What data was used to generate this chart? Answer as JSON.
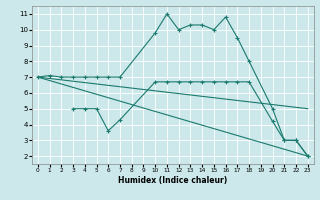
{
  "xlabel": "Humidex (Indice chaleur)",
  "bg_color": "#cce8ea",
  "grid_color": "#ffffff",
  "line_color": "#1a7a6e",
  "xlim": [
    -0.5,
    23.5
  ],
  "ylim": [
    1.5,
    11.5
  ],
  "xticks": [
    0,
    1,
    2,
    3,
    4,
    5,
    6,
    7,
    8,
    9,
    10,
    11,
    12,
    13,
    14,
    15,
    16,
    17,
    18,
    19,
    20,
    21,
    22,
    23
  ],
  "yticks": [
    2,
    3,
    4,
    5,
    6,
    7,
    8,
    9,
    10,
    11
  ],
  "series": [
    {
      "x": [
        0,
        1,
        2,
        3,
        4,
        5,
        6,
        7,
        10,
        11,
        12,
        13,
        14,
        15,
        16,
        17,
        18,
        20,
        21,
        22,
        23
      ],
      "y": [
        7,
        7.1,
        7,
        7,
        7,
        7,
        7,
        7,
        9.8,
        11,
        10,
        10.3,
        10.3,
        10.0,
        10.8,
        9.5,
        8.0,
        5.0,
        3.0,
        3.0,
        2.0
      ],
      "markers": true
    },
    {
      "x": [
        0,
        23
      ],
      "y": [
        7.0,
        5.0
      ],
      "markers": false
    },
    {
      "x": [
        0,
        23
      ],
      "y": [
        7.0,
        2.0
      ],
      "markers": false
    },
    {
      "x": [
        3,
        4,
        5,
        6,
        7,
        10,
        11,
        12,
        13,
        14,
        15,
        16,
        17,
        18,
        20,
        21,
        22,
        23
      ],
      "y": [
        5.0,
        5.0,
        5.0,
        3.6,
        4.3,
        6.7,
        6.7,
        6.7,
        6.7,
        6.7,
        6.7,
        6.7,
        6.7,
        6.7,
        4.2,
        3.0,
        3.0,
        2.0
      ],
      "markers": true
    }
  ]
}
